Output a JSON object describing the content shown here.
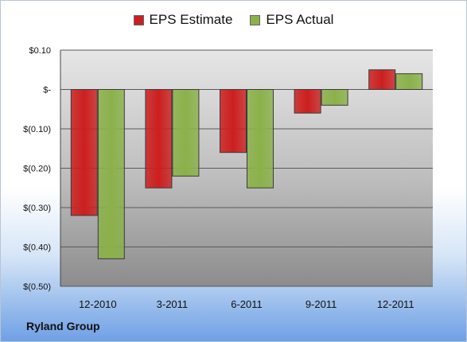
{
  "colors": {
    "estimate": "#cc1f1f",
    "actual": "#8bb14a",
    "plot_bg_top": "#e6e6e6",
    "plot_bg_bottom": "#8c8c8c",
    "grid": "#5a5a5a"
  },
  "company": "Ryland Group",
  "chart_data": {
    "type": "bar",
    "categories": [
      "12-2010",
      "3-2011",
      "6-2011",
      "9-2011",
      "12-2011"
    ],
    "series": [
      {
        "name": "EPS Estimate",
        "values": [
          -0.32,
          -0.25,
          -0.16,
          -0.06,
          0.05
        ]
      },
      {
        "name": "EPS Actual",
        "values": [
          -0.43,
          -0.22,
          -0.25,
          -0.04,
          0.04
        ]
      }
    ],
    "ylim": [
      -0.5,
      0.1
    ],
    "yticks": [
      0.1,
      0,
      -0.1,
      -0.2,
      -0.3,
      -0.4,
      -0.5
    ],
    "ytick_labels": [
      "$0.10",
      "$-",
      "$(0.10)",
      "$(0.20)",
      "$(0.30)",
      "$(0.40)",
      "$(0.50)"
    ],
    "grid": true,
    "legend": "top-center"
  }
}
